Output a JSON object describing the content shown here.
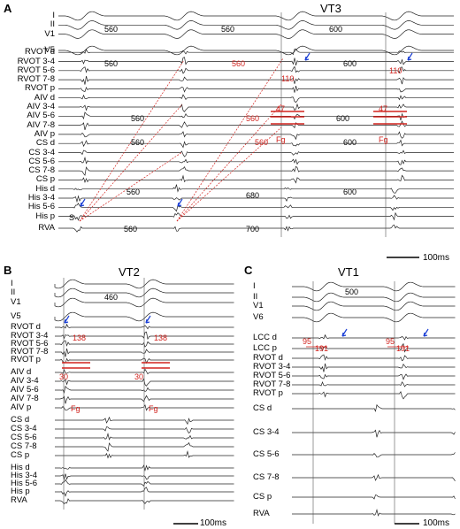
{
  "colors": {
    "trace": "#222222",
    "annotation_red": "#d2231e",
    "arrow_blue": "#1b3fd6"
  },
  "panelA": {
    "label": "A",
    "title": "VT3",
    "leads": [
      "I",
      "II",
      "V1",
      "V5",
      "RVOT d",
      "RVOT 3-4",
      "RVOT 5-6",
      "RVOT 7-8",
      "RVOT p",
      "AIV d",
      "AIV 3-4",
      "AIV 5-6",
      "AIV 7-8",
      "AIV p",
      "CS d",
      "CS 3-4",
      "CS 5-6",
      "CS 7-8",
      "CS p",
      "His d",
      "His 3-4",
      "His 5-6",
      "His p",
      "RVA"
    ],
    "intervals": {
      "ii_1": "560",
      "ii_2": "560",
      "ii_3": "600",
      "v5_1": "560",
      "v5_2": "560",
      "v5_3": "600",
      "aiv_1": "560",
      "aiv_2": "560",
      "aiv_3": "600",
      "cs_1": "560",
      "cs_2": "560",
      "cs_3": "600",
      "his_1": "560",
      "his_2": "680",
      "his_3": "600",
      "rva_1": "560",
      "rva_2": "700"
    },
    "red_labels": {
      "a": "110",
      "b": "110",
      "c": "47",
      "d": "47",
      "fg1": "Fg",
      "fg2": "Fg"
    },
    "stim": "S",
    "scale": "100ms"
  },
  "panelB": {
    "label": "B",
    "title": "VT2",
    "leads": [
      "I",
      "II",
      "V1",
      "V5",
      "RVOT d",
      "RVOT 3-4",
      "RVOT 5-6",
      "RVOT 7-8",
      "RVOT p",
      "AIV d",
      "AIV 3-4",
      "AIV 5-6",
      "AIV 7-8",
      "AIV p",
      "CS d",
      "CS 3-4",
      "CS 5-6",
      "CS 7-8",
      "CS p",
      "His d",
      "His 3-4",
      "His 5-6",
      "His p",
      "RVA"
    ],
    "interval": "460",
    "red_labels": {
      "a": "138",
      "b": "138",
      "c": "30",
      "d": "30",
      "fg1": "Fg",
      "fg2": "Fg"
    },
    "scale": "100ms"
  },
  "panelC": {
    "label": "C",
    "title": "VT1",
    "leads": [
      "I",
      "II",
      "V1",
      "V6",
      "LCC d",
      "LCC p",
      "RVOT d",
      "RVOT 3-4",
      "RVOT 5-6",
      "RVOT 7-8",
      "RVOT p",
      "CS d",
      "CS 3-4",
      "CS 5-6",
      "CS 7-8",
      "CS p",
      "RVA"
    ],
    "interval": "500",
    "red_labels": {
      "a": "95",
      "b": "95",
      "c": "191",
      "d": "191"
    },
    "scale": "100ms"
  }
}
